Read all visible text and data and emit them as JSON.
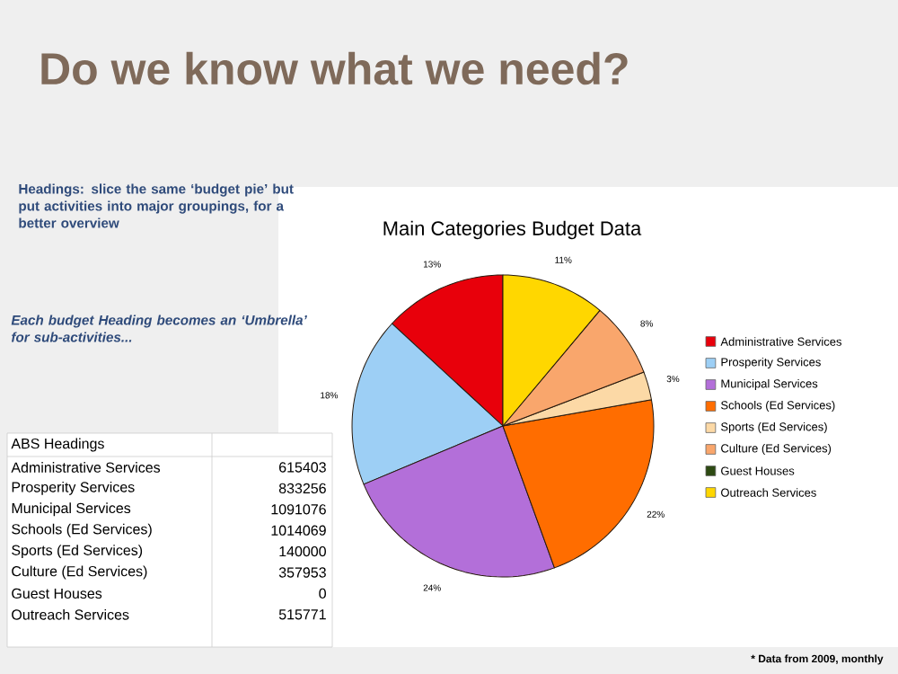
{
  "chart_data": [
    {
      "type": "pie",
      "title": "Do we know what we need?",
      "subtitle": "Main Categories Budget Data",
      "categories": [
        "Administrative Services",
        "Prosperity Services",
        "Municipal Services",
        "Schools (Ed Services)",
        "Sports (Ed Services)",
        "Culture (Ed Services)",
        "Guest Houses",
        "Outreach Services"
      ],
      "values": [
        13,
        18,
        24,
        22,
        3,
        8,
        0,
        11
      ],
      "value_labels": [
        "13%",
        "18%",
        "24%",
        "22%",
        "3%",
        "8%",
        null,
        "11%"
      ],
      "colors": [
        "#e8000b",
        "#9dcff5",
        "#b36fd9",
        "#ff6d00",
        "#fcd9a6",
        "#f9a66c",
        "#2d4a12",
        "#ffd700"
      ],
      "legend": "right",
      "annotations": [
        "Headings: slice the same ‘budget pie’ but put activities into major groupings, for a better overview",
        "*Each budget Heading becomes an ‘Umbrella’ for sub-activities...*",
        "* Data from 2009, monthly"
      ]
    },
    {
      "type": "other",
      "title": "ABS Headings",
      "categories": [
        "Administrative Services",
        "Prosperity Services",
        "Municipal Services",
        "Schools (Ed Services)",
        "Sports (Ed Services)",
        "Culture (Ed Services)",
        "Guest Houses",
        "Outreach Services"
      ],
      "values": [
        615403,
        833256,
        1091076,
        1014069,
        140000,
        357953,
        0,
        515771
      ],
      "data_labels": true
    }
  ]
}
